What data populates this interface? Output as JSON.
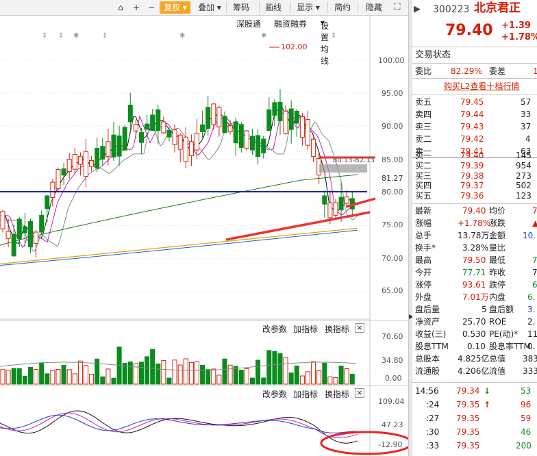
{
  "toolbar": {
    "items": [
      "复权",
      "叠加",
      "筹码",
      "画线",
      "显示",
      "简约",
      "隐藏"
    ],
    "active": "复权"
  },
  "sub_toolbar": {
    "items": [
      "深股通",
      "融资融券",
      "设置均线"
    ]
  },
  "main_chart": {
    "annotation_high": "102.00",
    "box_label": "81.27",
    "overlay_label": "80.13-82.13",
    "y_ticks": [
      "100.00",
      "95.00",
      "90.00",
      "85.00",
      "80.00",
      "75.00",
      "70.00",
      "65.00"
    ]
  },
  "volume_panel": {
    "buttons": [
      "改参数",
      "加指标",
      "换指标"
    ],
    "y_ticks": [
      "70.60",
      "34.80",
      "0.00"
    ]
  },
  "indicator_panel": {
    "buttons": [
      "改参数",
      "加指标",
      "换指标"
    ],
    "y_ticks": [
      "109.04",
      "47.23",
      "-12.90"
    ]
  },
  "quote": {
    "code": "300223",
    "name": "北京君正",
    "price": "79.40",
    "change": "+1.39",
    "change_pct": "+1.78%",
    "section_title": "交易状态",
    "weibi_label": "委比",
    "weibi_value": "82.29%",
    "weicha_label": "委差",
    "weicha_value": "1",
    "l2_link": "购买L2查看十档行情",
    "asks": [
      {
        "label": "卖五",
        "price": "79.45",
        "vol": "57"
      },
      {
        "label": "卖四",
        "price": "79.44",
        "vol": "33"
      },
      {
        "label": "卖三",
        "price": "79.43",
        "vol": "37"
      },
      {
        "label": "卖二",
        "price": "79.42",
        "vol": "4"
      },
      {
        "label": "卖一",
        "price": "79.41",
        "vol": "63"
      }
    ],
    "bids": [
      {
        "label": "买一",
        "price": "79.40",
        "vol": "145"
      },
      {
        "label": "买二",
        "price": "79.39",
        "vol": "954"
      },
      {
        "label": "买三",
        "price": "79.38",
        "vol": "273"
      },
      {
        "label": "买四",
        "price": "79.37",
        "vol": "502"
      },
      {
        "label": "买五",
        "price": "79.36",
        "vol": "123"
      }
    ],
    "stats": [
      {
        "l": "最新",
        "v": "79.40",
        "vc": "red",
        "l2": "均价",
        "v2": "7",
        "v2c": "red"
      },
      {
        "l": "涨幅",
        "v": "+1.78%",
        "vc": "red",
        "l2": "涨跌",
        "v2": "▲",
        "v2c": "red"
      },
      {
        "l": "总手",
        "v": "13.78万",
        "vc": "dark",
        "l2": "金额",
        "v2": "10.",
        "v2c": "blue"
      },
      {
        "l": "换手*",
        "v": "3.28%",
        "vc": "dark",
        "l2": "量比",
        "v2": "",
        "v2c": "dark"
      },
      {
        "l": "最高",
        "v": "79.50",
        "vc": "red",
        "l2": "最低",
        "v2": "7",
        "v2c": "green"
      },
      {
        "l": "今开",
        "v": "77.71",
        "vc": "green",
        "l2": "昨收",
        "v2": "7",
        "v2c": "dark"
      },
      {
        "l": "涨停",
        "v": "93.61",
        "vc": "red",
        "l2": "跌停",
        "v2": "6",
        "v2c": "green"
      },
      {
        "l": "外盘",
        "v": "7.01万",
        "vc": "red",
        "l2": "内盘",
        "v2": "6.",
        "v2c": "green"
      },
      {
        "l": "盘后量",
        "v": "5",
        "vc": "dark",
        "l2": "盘后额",
        "v2": "3.",
        "v2c": "blue"
      },
      {
        "l": "净资产",
        "v": "25.70",
        "vc": "dark",
        "l2": "ROE",
        "v2": "2.",
        "v2c": "dark"
      },
      {
        "l": "收益(三)",
        "v": "0.530",
        "vc": "dark",
        "l2": "PE(动)*",
        "v2": "11",
        "v2c": "dark"
      },
      {
        "l": "股息TTM",
        "v": "0.10",
        "vc": "dark",
        "l2": "股息率TTM",
        "v2": "0.",
        "v2c": "dark"
      },
      {
        "l": "总股本",
        "v": "4.825亿",
        "vc": "dark",
        "l2": "总值",
        "v2": "383",
        "v2c": "dark"
      },
      {
        "l": "流通股",
        "v": "4.206亿",
        "vc": "dark",
        "l2": "流值",
        "v2": "333",
        "v2c": "dark"
      }
    ],
    "ticks": [
      {
        "t": "14:56",
        "p": "79.34",
        "arrow": "↓",
        "ac": "green",
        "v": "53",
        "vc": "green"
      },
      {
        "t": ":24",
        "p": "79.35",
        "arrow": "↑",
        "ac": "red",
        "v": "96",
        "vc": "red"
      },
      {
        "t": ":27",
        "p": "79.35",
        "arrow": "",
        "ac": "red",
        "v": "59",
        "vc": "red"
      },
      {
        "t": ":30",
        "p": "79.35",
        "arrow": "",
        "ac": "red",
        "v": "46",
        "vc": "green"
      },
      {
        "t": ":33",
        "p": "79.35",
        "arrow": "",
        "ac": "red",
        "v": "200",
        "vc": "green"
      }
    ]
  },
  "colors": {
    "up": "#d81e06",
    "down": "#0a8c1e",
    "accent": "#f6a623",
    "blue_line": "#1a24a8"
  }
}
